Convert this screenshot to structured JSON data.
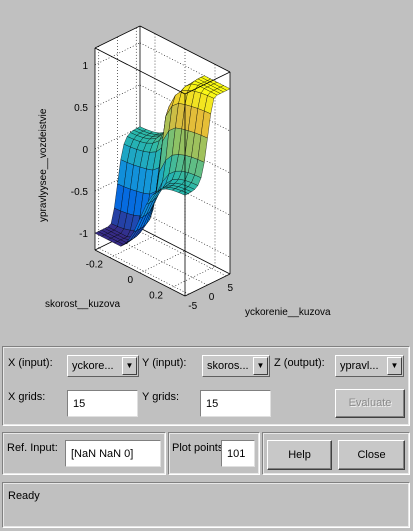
{
  "plot": {
    "zlabel": "ypravlyysee__vozdeistvie",
    "xlabel": "yckorenie__kuzova",
    "ylabel": "skorost__kuzova",
    "z_ticks": [
      "1",
      "0.5",
      "0",
      "-0.5",
      "-1"
    ],
    "x_ticks": [
      "-5",
      "0",
      "5"
    ],
    "y_ticks": [
      "0.2",
      "0",
      "-0.2"
    ]
  },
  "chart_data": {
    "type": "surface",
    "title": "",
    "xlabel": "yckorenie__kuzova",
    "ylabel": "skorost__kuzova",
    "zlabel": "ypravlyysee__vozdeistvie",
    "xlim": [
      -6,
      6
    ],
    "ylim": [
      -0.3,
      0.3
    ],
    "zlim": [
      -1.2,
      1.2
    ],
    "grid": true,
    "colormap": "parula"
  },
  "controls": {
    "x_input_label": "X (input):",
    "x_input_value": "yckore...",
    "y_input_label": "Y (input):",
    "y_input_value": "skoros...",
    "z_output_label": "Z (output):",
    "z_output_value": "ypravl...",
    "x_grids_label": "X grids:",
    "x_grids_value": "15",
    "y_grids_label": "Y grids:",
    "y_grids_value": "15",
    "evaluate_label": "Evaluate",
    "ref_input_label": "Ref. Input:",
    "ref_input_value": "[NaN NaN 0]",
    "plot_points_label": "Plot points",
    "plot_points_value": "101",
    "help_label": "Help",
    "close_label": "Close"
  },
  "status": {
    "text": "Ready"
  },
  "arrow_glyph": "▼"
}
